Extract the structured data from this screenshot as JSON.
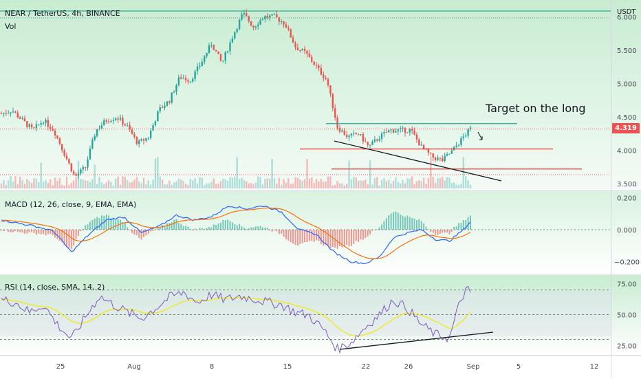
{
  "header": {
    "symbol_line": "NEAR / TetherUS, 4h, BINANCE",
    "vol_label": "Vol",
    "currency": "USDT",
    "last_price": "4.319",
    "annotation": "Target on the long"
  },
  "colors": {
    "up": "#26a69a",
    "down": "#ef5350",
    "macd_line": "#2962ff",
    "signal_line": "#ff6d00",
    "rsi_line": "#7e57c2",
    "rsi_ma": "#f5e800",
    "level_lines": "#e53935",
    "resistance": "#22ab94",
    "trendline": "#131722",
    "top_line": "#089981"
  },
  "chart_data": [
    {
      "type": "candlestick",
      "title": "NEAR / TetherUS, 4h, BINANCE",
      "y_ticks": [
        "6.000",
        "5.500",
        "5.000",
        "4.500",
        "4.000",
        "3.500"
      ],
      "x_ticks": [
        "25",
        "Aug",
        "8",
        "15",
        "22",
        "26",
        "Sep",
        "5",
        "12"
      ],
      "ylim": [
        3.45,
        6.25
      ],
      "close_path": [
        {
          "t": 0,
          "v": 4.55
        },
        {
          "t": 3,
          "v": 4.6
        },
        {
          "t": 6,
          "v": 4.45
        },
        {
          "t": 9,
          "v": 4.3
        },
        {
          "t": 12,
          "v": 4.45
        },
        {
          "t": 15,
          "v": 4.3
        },
        {
          "t": 18,
          "v": 3.95
        },
        {
          "t": 21,
          "v": 3.6
        },
        {
          "t": 24,
          "v": 3.75
        },
        {
          "t": 27,
          "v": 4.3
        },
        {
          "t": 30,
          "v": 4.45
        },
        {
          "t": 33,
          "v": 4.5
        },
        {
          "t": 36,
          "v": 4.35
        },
        {
          "t": 39,
          "v": 4.1
        },
        {
          "t": 42,
          "v": 4.2
        },
        {
          "t": 45,
          "v": 4.6
        },
        {
          "t": 48,
          "v": 4.75
        },
        {
          "t": 51,
          "v": 5.1
        },
        {
          "t": 54,
          "v": 5.05
        },
        {
          "t": 57,
          "v": 5.3
        },
        {
          "t": 60,
          "v": 5.6
        },
        {
          "t": 63,
          "v": 5.3
        },
        {
          "t": 66,
          "v": 5.7
        },
        {
          "t": 69,
          "v": 6.05
        },
        {
          "t": 72,
          "v": 5.85
        },
        {
          "t": 75,
          "v": 6.0
        },
        {
          "t": 78,
          "v": 6.0
        },
        {
          "t": 81,
          "v": 5.9
        },
        {
          "t": 84,
          "v": 5.55
        },
        {
          "t": 87,
          "v": 5.45
        },
        {
          "t": 90,
          "v": 5.25
        },
        {
          "t": 93,
          "v": 5.05
        },
        {
          "t": 96,
          "v": 4.35
        },
        {
          "t": 99,
          "v": 4.2
        },
        {
          "t": 102,
          "v": 4.25
        },
        {
          "t": 105,
          "v": 4.05
        },
        {
          "t": 108,
          "v": 4.2
        },
        {
          "t": 111,
          "v": 4.3
        },
        {
          "t": 114,
          "v": 4.3
        },
        {
          "t": 117,
          "v": 4.3
        },
        {
          "t": 120,
          "v": 4.05
        },
        {
          "t": 123,
          "v": 3.9
        },
        {
          "t": 126,
          "v": 3.85
        },
        {
          "t": 129,
          "v": 4.0
        },
        {
          "t": 132,
          "v": 4.2
        },
        {
          "t": 134,
          "v": 4.32
        }
      ],
      "levels": [
        {
          "name": "resistance",
          "value": 4.4
        },
        {
          "name": "support-1",
          "value": 4.02
        },
        {
          "name": "support-2",
          "value": 3.72
        }
      ],
      "last_value": 4.319
    },
    {
      "type": "line",
      "title": "MACD (12, 26, close, 9, EMA, EMA)",
      "y_ticks": [
        "0.200",
        "0.000",
        "−0.200"
      ],
      "ylim": [
        -0.27,
        0.24
      ],
      "macd_path": [
        {
          "t": 0,
          "v": 0.06
        },
        {
          "t": 5,
          "v": 0.04
        },
        {
          "t": 10,
          "v": 0.02
        },
        {
          "t": 15,
          "v": -0.01
        },
        {
          "t": 20,
          "v": -0.14
        },
        {
          "t": 25,
          "v": -0.03
        },
        {
          "t": 30,
          "v": 0.06
        },
        {
          "t": 35,
          "v": 0.08
        },
        {
          "t": 40,
          "v": -0.02
        },
        {
          "t": 45,
          "v": 0.02
        },
        {
          "t": 50,
          "v": 0.09
        },
        {
          "t": 55,
          "v": 0.06
        },
        {
          "t": 60,
          "v": 0.08
        },
        {
          "t": 65,
          "v": 0.15
        },
        {
          "t": 70,
          "v": 0.13
        },
        {
          "t": 75,
          "v": 0.15
        },
        {
          "t": 80,
          "v": 0.11
        },
        {
          "t": 85,
          "v": 0.0
        },
        {
          "t": 90,
          "v": -0.03
        },
        {
          "t": 95,
          "v": -0.14
        },
        {
          "t": 100,
          "v": -0.2
        },
        {
          "t": 104,
          "v": -0.21
        },
        {
          "t": 108,
          "v": -0.17
        },
        {
          "t": 112,
          "v": -0.05
        },
        {
          "t": 116,
          "v": -0.02
        },
        {
          "t": 120,
          "v": 0.0
        },
        {
          "t": 124,
          "v": -0.06
        },
        {
          "t": 128,
          "v": -0.07
        },
        {
          "t": 132,
          "v": 0.0
        },
        {
          "t": 134,
          "v": 0.05
        }
      ]
    },
    {
      "type": "line",
      "title": "RSI (14, close, SMA, 14, 2)",
      "y_ticks": [
        "75.00",
        "50.00",
        "25.00"
      ],
      "ylim": [
        18,
        82
      ],
      "bands": [
        70,
        50,
        30
      ],
      "rsi_path": [
        {
          "t": 0,
          "v": 62
        },
        {
          "t": 4,
          "v": 60
        },
        {
          "t": 8,
          "v": 52
        },
        {
          "t": 12,
          "v": 58
        },
        {
          "t": 16,
          "v": 42
        },
        {
          "t": 20,
          "v": 30
        },
        {
          "t": 24,
          "v": 48
        },
        {
          "t": 28,
          "v": 65
        },
        {
          "t": 32,
          "v": 58
        },
        {
          "t": 36,
          "v": 52
        },
        {
          "t": 40,
          "v": 47
        },
        {
          "t": 44,
          "v": 55
        },
        {
          "t": 48,
          "v": 64
        },
        {
          "t": 52,
          "v": 68
        },
        {
          "t": 56,
          "v": 60
        },
        {
          "t": 60,
          "v": 66
        },
        {
          "t": 64,
          "v": 62
        },
        {
          "t": 68,
          "v": 65
        },
        {
          "t": 72,
          "v": 63
        },
        {
          "t": 76,
          "v": 60
        },
        {
          "t": 80,
          "v": 58
        },
        {
          "t": 84,
          "v": 52
        },
        {
          "t": 88,
          "v": 49
        },
        {
          "t": 92,
          "v": 38
        },
        {
          "t": 96,
          "v": 22
        },
        {
          "t": 100,
          "v": 28
        },
        {
          "t": 104,
          "v": 40
        },
        {
          "t": 108,
          "v": 50
        },
        {
          "t": 112,
          "v": 62
        },
        {
          "t": 116,
          "v": 55
        },
        {
          "t": 120,
          "v": 42
        },
        {
          "t": 124,
          "v": 34
        },
        {
          "t": 128,
          "v": 31
        },
        {
          "t": 131,
          "v": 60
        },
        {
          "t": 133,
          "v": 72
        },
        {
          "t": 134,
          "v": 65
        }
      ]
    }
  ]
}
